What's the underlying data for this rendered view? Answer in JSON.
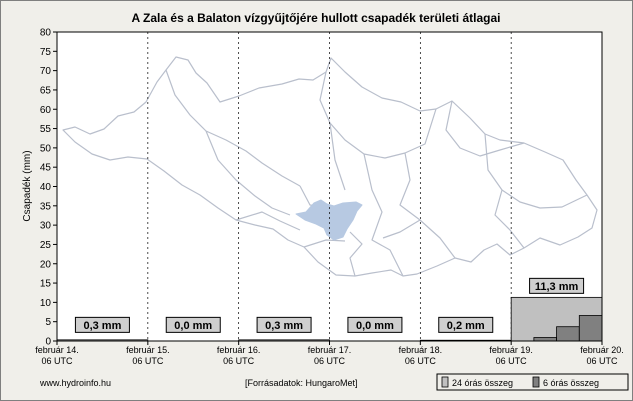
{
  "chart_data": {
    "type": "bar",
    "title": "A Zala és a Balaton vízgyűjtőjére hullott csapadék területi átlagai",
    "ylabel": "Csapadék (mm)",
    "ylim": [
      0,
      80
    ],
    "yticks": [
      0,
      5,
      10,
      15,
      20,
      25,
      30,
      35,
      40,
      45,
      50,
      55,
      60,
      65,
      70,
      75,
      80
    ],
    "x_tick_labels": [
      {
        "date": "február 14.",
        "time": "06 UTC"
      },
      {
        "date": "február 15.",
        "time": "06 UTC"
      },
      {
        "date": "február 16.",
        "time": "06 UTC"
      },
      {
        "date": "február 17.",
        "time": "06 UTC"
      },
      {
        "date": "február 18.",
        "time": "06 UTC"
      },
      {
        "date": "február 19.",
        "time": "06 UTC"
      },
      {
        "date": "február 20.",
        "time": "06 UTC"
      }
    ],
    "grid": true,
    "legend_position": "bottom-right",
    "series": [
      {
        "name": "24 órás összeg",
        "color": "#c0c0c0",
        "periods": [
          "február 14. 06 UTC – február 15. 06 UTC",
          "február 15. 06 UTC – február 16. 06 UTC",
          "február 16. 06 UTC – február 17. 06 UTC",
          "február 17. 06 UTC – február 18. 06 UTC",
          "február 18. 06 UTC – február 19. 06 UTC",
          "február 19. 06 UTC – február 20. 06 UTC"
        ],
        "values": [
          0.3,
          0.0,
          0.3,
          0.0,
          0.2,
          11.3
        ],
        "value_labels": [
          "0,3 mm",
          "0,0 mm",
          "0,3 mm",
          "0,0 mm",
          "0,2 mm",
          "11,3 mm"
        ]
      },
      {
        "name": "6 órás összeg",
        "color": "#808080",
        "day": "február 19. 06 UTC – február 20. 06 UTC",
        "values": [
          0,
          0.9,
          3.7,
          6.6
        ]
      }
    ]
  },
  "footer": {
    "source_site": "www.hydroinfo.hu",
    "data_source": "[Forrásadatok: HungaroMet]"
  },
  "colors": {
    "background": "#f0efea",
    "plot_area": "#ffffff",
    "map_outline": "#b9bfcc",
    "lake": "#b7c9e2"
  }
}
